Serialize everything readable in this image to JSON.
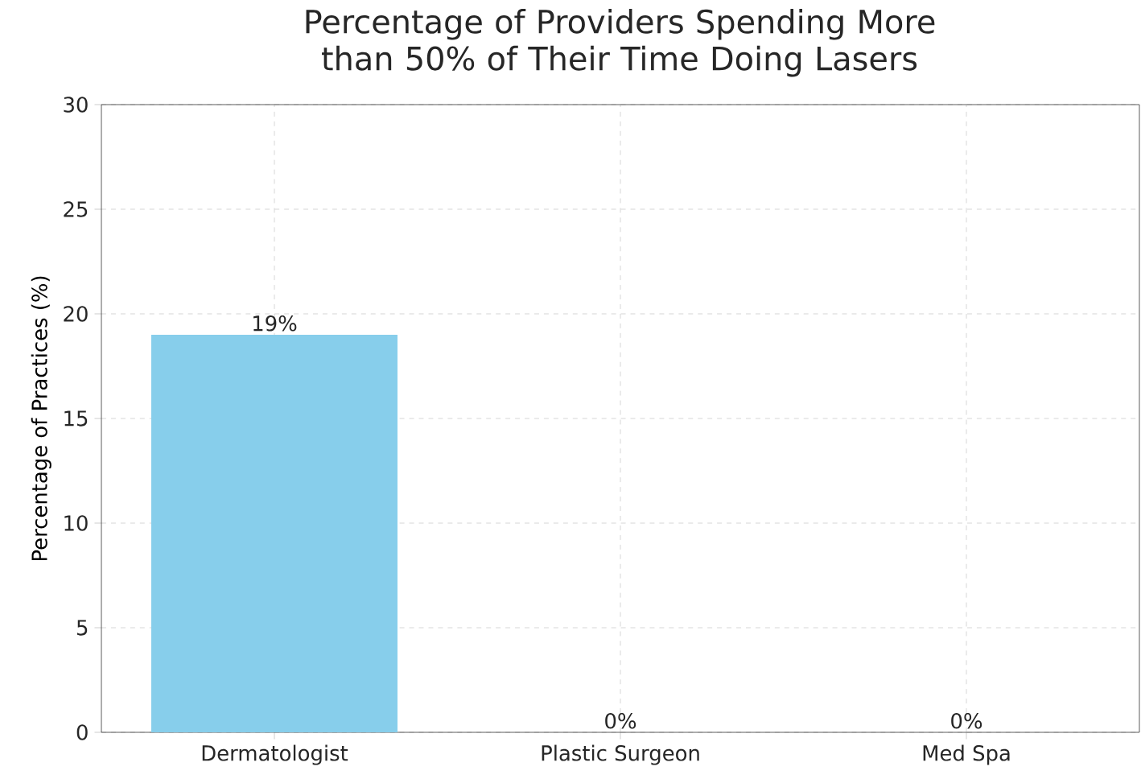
{
  "chart_data": {
    "type": "bar",
    "title": "Percentage of Providers Spending More than 50% of Their Time Doing Lasers",
    "ylabel": "Percentage of Practices (%)",
    "categories": [
      "Dermatologist",
      "Plastic Surgeon",
      "Med Spa"
    ],
    "values": [
      19,
      0,
      0
    ],
    "color": "#87ceeb",
    "value_labels": [
      "19%",
      "0%",
      "0%"
    ],
    "ylim": [
      0,
      30
    ],
    "yticks": [
      0,
      5,
      10,
      15,
      20,
      25,
      30
    ],
    "grid": true
  }
}
